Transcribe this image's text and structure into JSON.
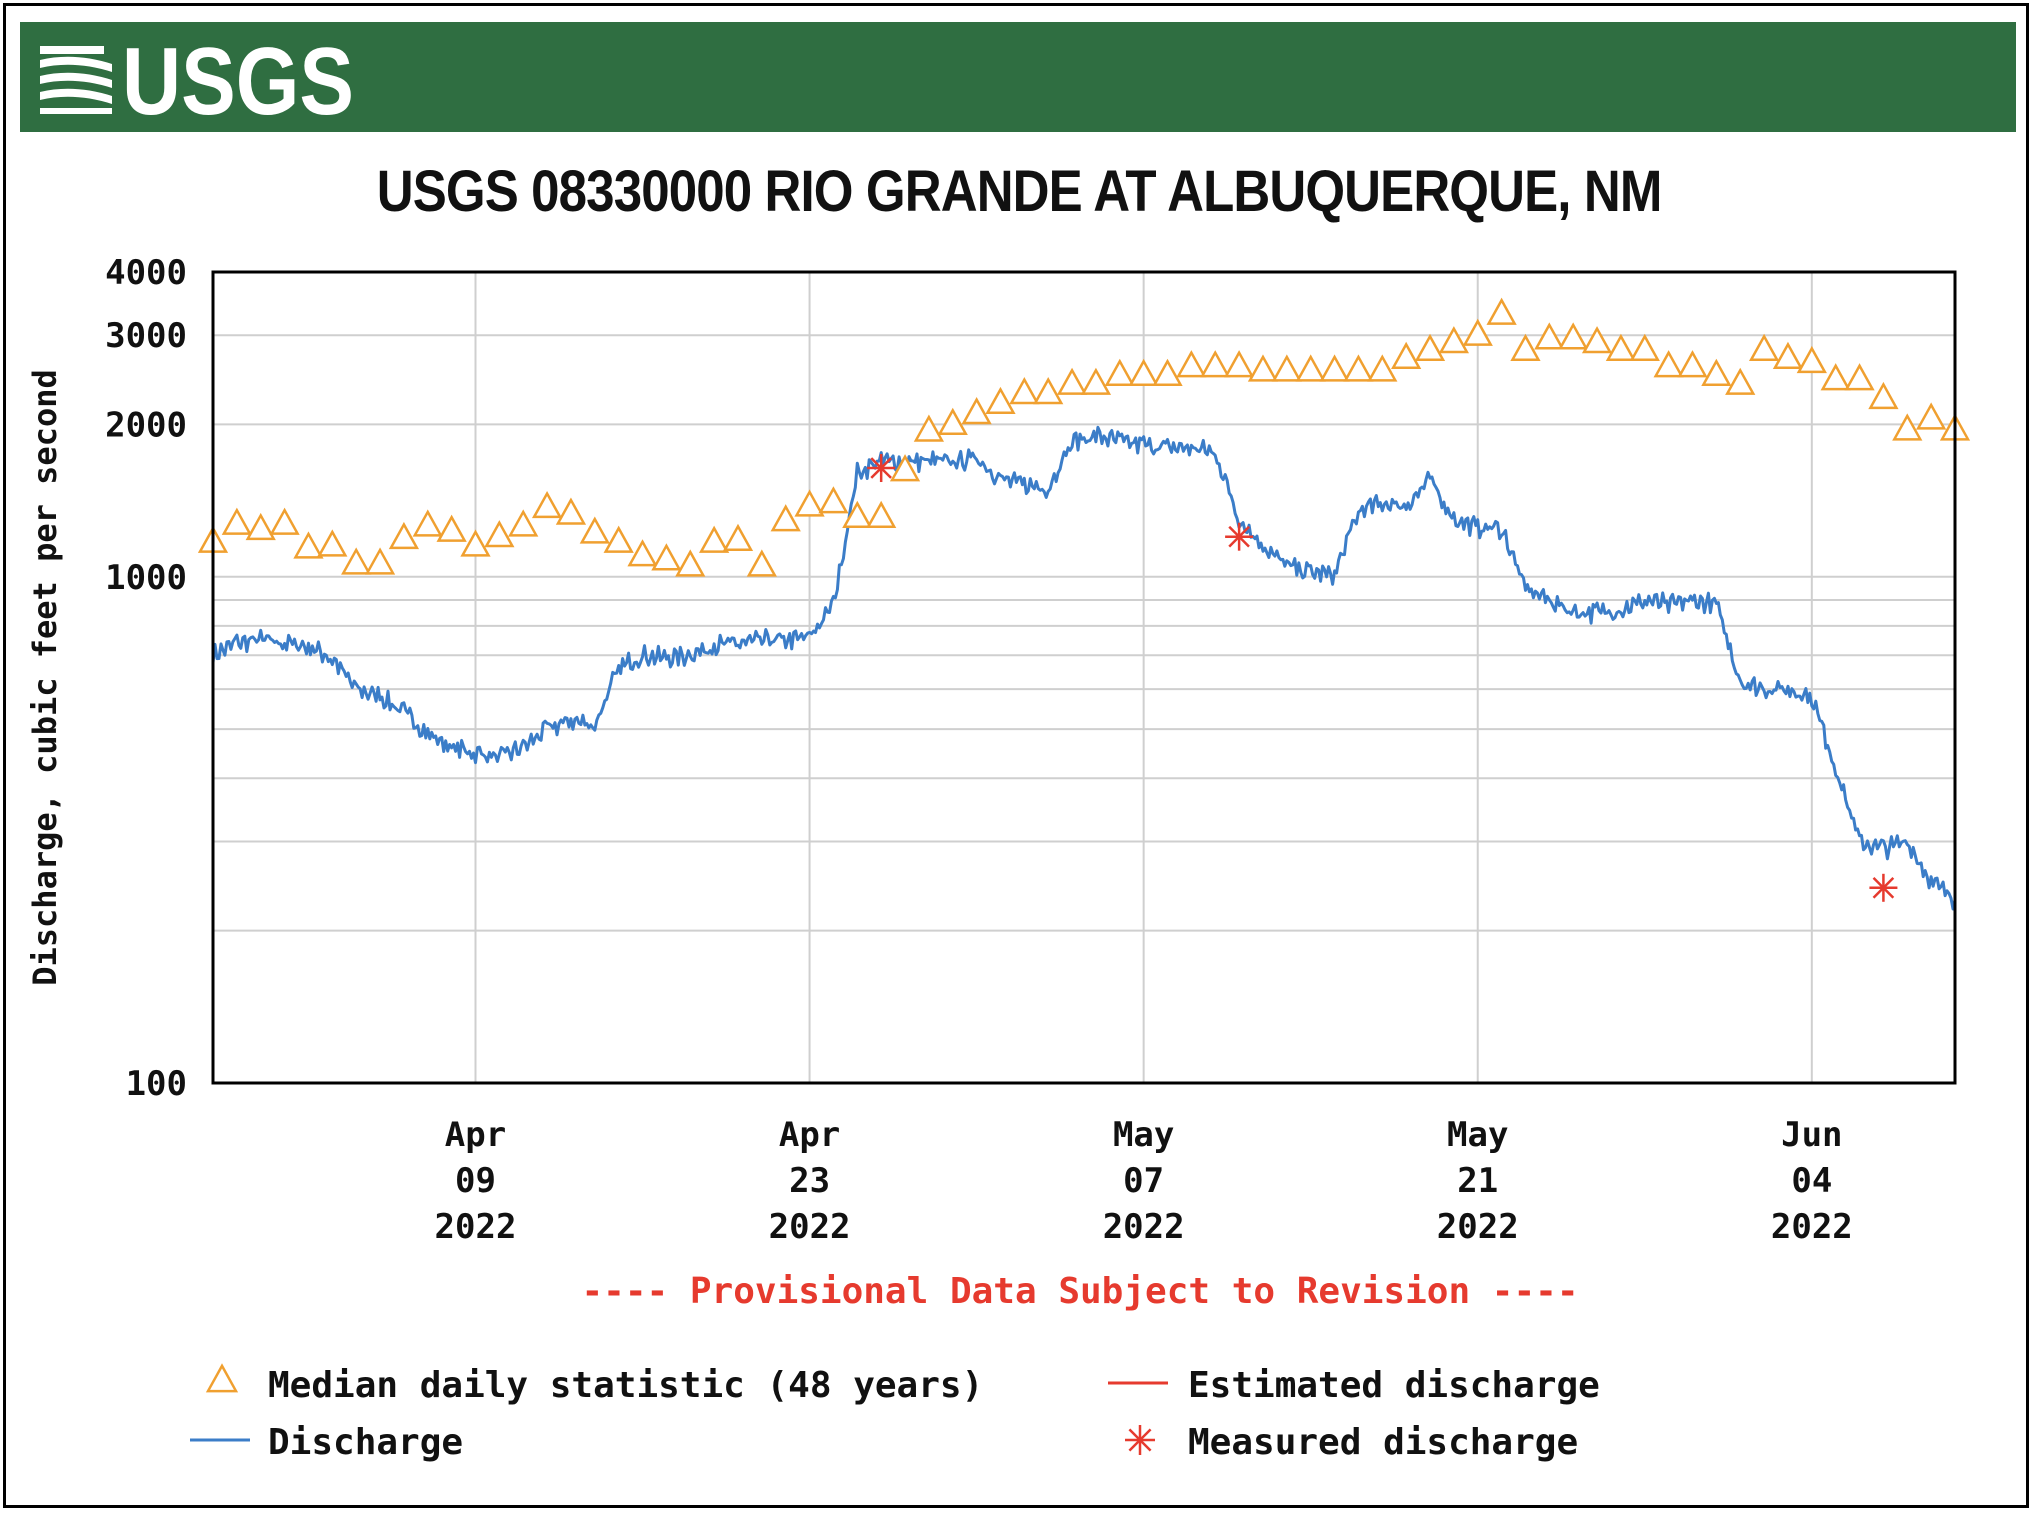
{
  "brand": {
    "logo_text": "USGS",
    "color": "#2f6e41"
  },
  "chart_data": {
    "type": "line",
    "title": "USGS 08330000 RIO GRANDE AT ALBUQUERQUE, NM",
    "ylabel": "Discharge, cubic feet per second",
    "yscale": "log",
    "ylim": [
      100,
      4000
    ],
    "y_ticks": [
      "4000",
      "3000",
      "2000",
      "1000",
      "100"
    ],
    "xlim": [
      "2022-03-29",
      "2022-06-10"
    ],
    "x_ticks": [
      {
        "date": "2022-04-09",
        "label": [
          "Apr",
          "09",
          "2022"
        ]
      },
      {
        "date": "2022-04-23",
        "label": [
          "Apr",
          "23",
          "2022"
        ]
      },
      {
        "date": "2022-05-07",
        "label": [
          "May",
          "07",
          "2022"
        ]
      },
      {
        "date": "2022-05-21",
        "label": [
          "May",
          "21",
          "2022"
        ]
      },
      {
        "date": "2022-06-04",
        "label": [
          "Jun",
          "04",
          "2022"
        ]
      }
    ],
    "grid": true,
    "provisional_note": "---- Provisional Data Subject to Revision ----",
    "legend_position": "bottom",
    "series": [
      {
        "name": "Median daily statistic (48 years)",
        "marker": "triangle",
        "color": "#f0a030",
        "x": [
          "2022-03-29",
          "2022-03-30",
          "2022-03-31",
          "2022-04-01",
          "2022-04-02",
          "2022-04-03",
          "2022-04-04",
          "2022-04-05",
          "2022-04-06",
          "2022-04-07",
          "2022-04-08",
          "2022-04-09",
          "2022-04-10",
          "2022-04-11",
          "2022-04-12",
          "2022-04-13",
          "2022-04-14",
          "2022-04-15",
          "2022-04-16",
          "2022-04-17",
          "2022-04-18",
          "2022-04-19",
          "2022-04-20",
          "2022-04-21",
          "2022-04-22",
          "2022-04-23",
          "2022-04-24",
          "2022-04-25",
          "2022-04-26",
          "2022-04-27",
          "2022-04-28",
          "2022-04-29",
          "2022-04-30",
          "2022-05-01",
          "2022-05-02",
          "2022-05-03",
          "2022-05-04",
          "2022-05-05",
          "2022-05-06",
          "2022-05-07",
          "2022-05-08",
          "2022-05-09",
          "2022-05-10",
          "2022-05-11",
          "2022-05-12",
          "2022-05-13",
          "2022-05-14",
          "2022-05-15",
          "2022-05-16",
          "2022-05-17",
          "2022-05-18",
          "2022-05-19",
          "2022-05-20",
          "2022-05-21",
          "2022-05-22",
          "2022-05-23",
          "2022-05-24",
          "2022-05-25",
          "2022-05-26",
          "2022-05-27",
          "2022-05-28",
          "2022-05-29",
          "2022-05-30",
          "2022-05-31",
          "2022-06-01",
          "2022-06-02",
          "2022-06-03",
          "2022-06-04",
          "2022-06-05",
          "2022-06-06",
          "2022-06-07",
          "2022-06-08",
          "2022-06-09",
          "2022-06-10"
        ],
        "values": [
          1170,
          1270,
          1240,
          1270,
          1140,
          1150,
          1060,
          1060,
          1190,
          1260,
          1230,
          1150,
          1200,
          1260,
          1370,
          1330,
          1220,
          1170,
          1100,
          1080,
          1050,
          1170,
          1180,
          1050,
          1290,
          1380,
          1400,
          1310,
          1310,
          1620,
          1940,
          2000,
          2100,
          2200,
          2300,
          2300,
          2400,
          2400,
          2500,
          2500,
          2500,
          2600,
          2600,
          2600,
          2550,
          2550,
          2550,
          2550,
          2550,
          2550,
          2700,
          2800,
          2900,
          3000,
          3300,
          2800,
          2950,
          2950,
          2900,
          2800,
          2800,
          2600,
          2600,
          2500,
          2400,
          2800,
          2700,
          2650,
          2450,
          2450,
          2250,
          1950,
          2050,
          1950
        ]
      },
      {
        "name": "Discharge",
        "marker": "line",
        "color": "#3b7dc8",
        "x": [
          "2022-03-29",
          "2022-03-30",
          "2022-03-31",
          "2022-04-01",
          "2022-04-02",
          "2022-04-03",
          "2022-04-04",
          "2022-04-05",
          "2022-04-06",
          "2022-04-07",
          "2022-04-08",
          "2022-04-09",
          "2022-04-10",
          "2022-04-11",
          "2022-04-12",
          "2022-04-13",
          "2022-04-14",
          "2022-04-15",
          "2022-04-16",
          "2022-04-17",
          "2022-04-18",
          "2022-04-19",
          "2022-04-20",
          "2022-04-21",
          "2022-04-22",
          "2022-04-23",
          "2022-04-24",
          "2022-04-25",
          "2022-04-26",
          "2022-04-27",
          "2022-04-28",
          "2022-04-29",
          "2022-04-30",
          "2022-05-01",
          "2022-05-02",
          "2022-05-03",
          "2022-05-04",
          "2022-05-05",
          "2022-05-06",
          "2022-05-07",
          "2022-05-08",
          "2022-05-09",
          "2022-05-10",
          "2022-05-11",
          "2022-05-12",
          "2022-05-13",
          "2022-05-14",
          "2022-05-15",
          "2022-05-16",
          "2022-05-17",
          "2022-05-18",
          "2022-05-19",
          "2022-05-20",
          "2022-05-21",
          "2022-05-22",
          "2022-05-23",
          "2022-05-24",
          "2022-05-25",
          "2022-05-26",
          "2022-05-27",
          "2022-05-28",
          "2022-05-29",
          "2022-05-30",
          "2022-05-31",
          "2022-06-01",
          "2022-06-02",
          "2022-06-03",
          "2022-06-04",
          "2022-06-05",
          "2022-06-06",
          "2022-06-07",
          "2022-06-08",
          "2022-06-09",
          "2022-06-10"
        ],
        "values": [
          700,
          740,
          750,
          740,
          730,
          690,
          600,
          580,
          540,
          490,
          460,
          450,
          440,
          460,
          500,
          520,
          510,
          660,
          700,
          690,
          700,
          730,
          740,
          750,
          750,
          760,
          880,
          1600,
          1700,
          1680,
          1700,
          1680,
          1720,
          1560,
          1520,
          1500,
          1850,
          1900,
          1850,
          1820,
          1800,
          1800,
          1760,
          1300,
          1150,
          1050,
          1020,
          1010,
          1350,
          1400,
          1380,
          1550,
          1300,
          1250,
          1250,
          950,
          900,
          850,
          850,
          860,
          900,
          880,
          900,
          880,
          620,
          600,
          600,
          580,
          420,
          300,
          290,
          300,
          250,
          230
        ]
      },
      {
        "name": "Estimated discharge",
        "marker": "line",
        "color": "#e63a2e",
        "x": [],
        "values": []
      },
      {
        "name": "Measured discharge",
        "marker": "asterisk",
        "color": "#e63a2e",
        "x": [
          "2022-04-26",
          "2022-05-11",
          "2022-06-07"
        ],
        "values": [
          1640,
          1200,
          243
        ]
      }
    ]
  }
}
